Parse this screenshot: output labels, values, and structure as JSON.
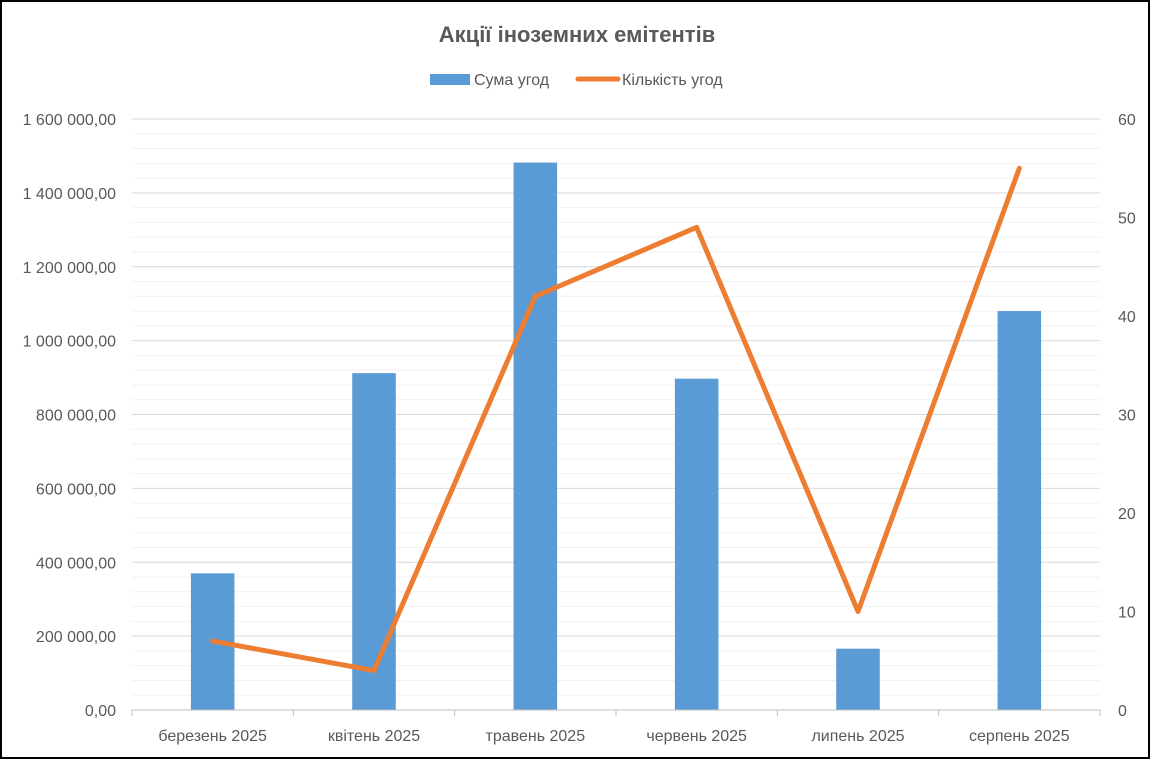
{
  "chart_data": {
    "type": "bar",
    "title": "Акції іноземних емітентів",
    "categories": [
      "березень 2025",
      "квітень 2025",
      "травень 2025",
      "червень 2025",
      "липень 2025",
      "серпень 2025"
    ],
    "series": [
      {
        "name": "Сума угод",
        "type": "bar",
        "axis": "left",
        "color": "#5B9BD5",
        "values": [
          370000,
          912000,
          1482000,
          897000,
          166000,
          1080000
        ]
      },
      {
        "name": "Кількість угод",
        "type": "line",
        "axis": "right",
        "color": "#ED7D31",
        "values": [
          7,
          4,
          42,
          49,
          10,
          55
        ]
      }
    ],
    "y_left": {
      "min": 0,
      "max": 1600000,
      "ticks": [
        0,
        200000,
        400000,
        600000,
        800000,
        1000000,
        1200000,
        1400000,
        1600000
      ],
      "tick_labels": [
        "0,00",
        "200 000,00",
        "400 000,00",
        "600 000,00",
        "800 000,00",
        "1 000 000,00",
        "1 200 000,00",
        "1 400 000,00",
        "1 600 000,00"
      ]
    },
    "y_right": {
      "min": 0,
      "max": 60,
      "ticks": [
        0,
        10,
        20,
        30,
        40,
        50,
        60
      ],
      "tick_labels": [
        "0",
        "10",
        "20",
        "30",
        "40",
        "50",
        "60"
      ]
    },
    "grid": true,
    "legend_position": "top"
  }
}
